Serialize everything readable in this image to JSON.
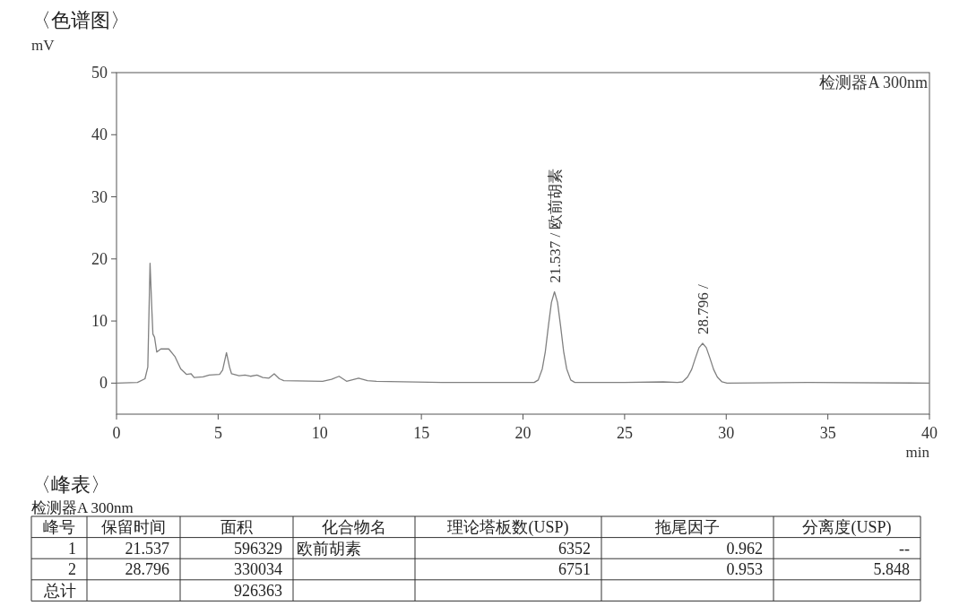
{
  "chart_data": {
    "type": "line",
    "title": "〈色谱图〉",
    "ylabel": "mV",
    "xlabel": "min",
    "xlim": [
      0,
      40
    ],
    "ylim": [
      -5,
      50
    ],
    "xticks": [
      0,
      5,
      10,
      15,
      20,
      25,
      30,
      35,
      40
    ],
    "yticks": [
      0,
      10,
      20,
      30,
      40,
      50
    ],
    "series": [
      {
        "color": "#808080",
        "x": [
          0,
          1.03,
          1.4,
          1.54,
          1.65,
          1.74,
          1.79,
          1.87,
          1.98,
          2.18,
          2.57,
          2.87,
          3.16,
          3.45,
          3.67,
          3.82,
          4.26,
          4.56,
          5.07,
          5.22,
          5.41,
          5.56,
          5.66,
          6.03,
          6.32,
          6.59,
          6.91,
          7.2,
          7.5,
          7.76,
          8.01,
          8.23,
          10.14,
          10.58,
          10.95,
          11.32,
          11.91,
          12.35,
          12.79,
          16,
          20.55,
          20.75,
          20.95,
          21.1,
          21.25,
          21.4,
          21.55,
          21.7,
          21.85,
          22.0,
          22.15,
          22.35,
          22.55,
          25,
          26.9,
          27.6,
          27.85,
          28.1,
          28.3,
          28.48,
          28.66,
          28.84,
          29.02,
          29.2,
          29.38,
          29.56,
          29.79,
          30.04,
          34,
          40
        ],
        "values": [
          0,
          0.1,
          0.7,
          2.6,
          19.3,
          11.7,
          7.9,
          7.4,
          5.0,
          5.5,
          5.5,
          4.3,
          2.3,
          1.4,
          1.5,
          0.9,
          1.0,
          1.3,
          1.4,
          2.1,
          4.9,
          2.6,
          1.5,
          1.2,
          1.3,
          1.1,
          1.3,
          0.9,
          0.8,
          1.5,
          0.7,
          0.4,
          0.3,
          0.6,
          1.1,
          0.3,
          0.8,
          0.4,
          0.3,
          0.1,
          0.1,
          0.5,
          2.3,
          5.1,
          9.2,
          13.0,
          14.7,
          13.0,
          9.2,
          5.1,
          2.3,
          0.5,
          0.1,
          0.1,
          0.2,
          0.1,
          0.2,
          1.0,
          2.2,
          4.0,
          5.7,
          6.4,
          5.7,
          4.0,
          2.2,
          1.0,
          0.2,
          0,
          0.1,
          0
        ]
      }
    ],
    "annotations": [
      "检测器A 300nm",
      {
        "text": "21.537 / 欧前胡素",
        "x": 21.537,
        "y": 14.7
      },
      {
        "text": "28.796 /",
        "x": 28.796,
        "y": 6.4
      },
      "〈峰表〉",
      "检测器A 300nm",
      "峰号",
      "保留时间",
      "面积",
      "化合物名",
      "理论塔板数(USP)",
      "拖尾因子",
      "分离度(USP)",
      "1",
      "21.537",
      "596329",
      "欧前胡素",
      "6352",
      "0.962",
      "--",
      "2",
      "28.796",
      "330034",
      null,
      "6751",
      "0.953",
      "5.848",
      "总计",
      null,
      "926363",
      null,
      null,
      null,
      null
    ]
  }
}
